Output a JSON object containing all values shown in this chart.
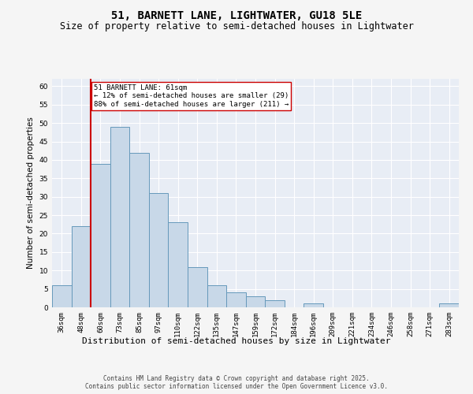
{
  "title": "51, BARNETT LANE, LIGHTWATER, GU18 5LE",
  "subtitle": "Size of property relative to semi-detached houses in Lightwater",
  "xlabel": "Distribution of semi-detached houses by size in Lightwater",
  "ylabel": "Number of semi-detached properties",
  "categories": [
    "36sqm",
    "48sqm",
    "60sqm",
    "73sqm",
    "85sqm",
    "97sqm",
    "110sqm",
    "122sqm",
    "135sqm",
    "147sqm",
    "159sqm",
    "172sqm",
    "184sqm",
    "196sqm",
    "209sqm",
    "221sqm",
    "234sqm",
    "246sqm",
    "258sqm",
    "271sqm",
    "283sqm"
  ],
  "values": [
    6,
    22,
    39,
    49,
    42,
    31,
    23,
    11,
    6,
    4,
    3,
    2,
    0,
    1,
    0,
    0,
    0,
    0,
    0,
    0,
    1
  ],
  "bar_color": "#c8d8e8",
  "bar_edge_color": "#6699bb",
  "annotation_text_line1": "51 BARNETT LANE: 61sqm",
  "annotation_text_line2": "← 12% of semi-detached houses are smaller (29)",
  "annotation_text_line3": "88% of semi-detached houses are larger (211) →",
  "vline_color": "#cc0000",
  "vline_x_index": 2,
  "ylim": [
    0,
    62
  ],
  "yticks": [
    0,
    5,
    10,
    15,
    20,
    25,
    30,
    35,
    40,
    45,
    50,
    55,
    60
  ],
  "fig_bg_color": "#f5f5f5",
  "ax_bg_color": "#e8edf5",
  "grid_color": "#ffffff",
  "footer_line1": "Contains HM Land Registry data © Crown copyright and database right 2025.",
  "footer_line2": "Contains public sector information licensed under the Open Government Licence v3.0.",
  "title_fontsize": 10,
  "subtitle_fontsize": 8.5,
  "xlabel_fontsize": 8,
  "ylabel_fontsize": 7.5,
  "tick_fontsize": 6.5,
  "annot_fontsize": 6.5,
  "footer_fontsize": 5.5
}
